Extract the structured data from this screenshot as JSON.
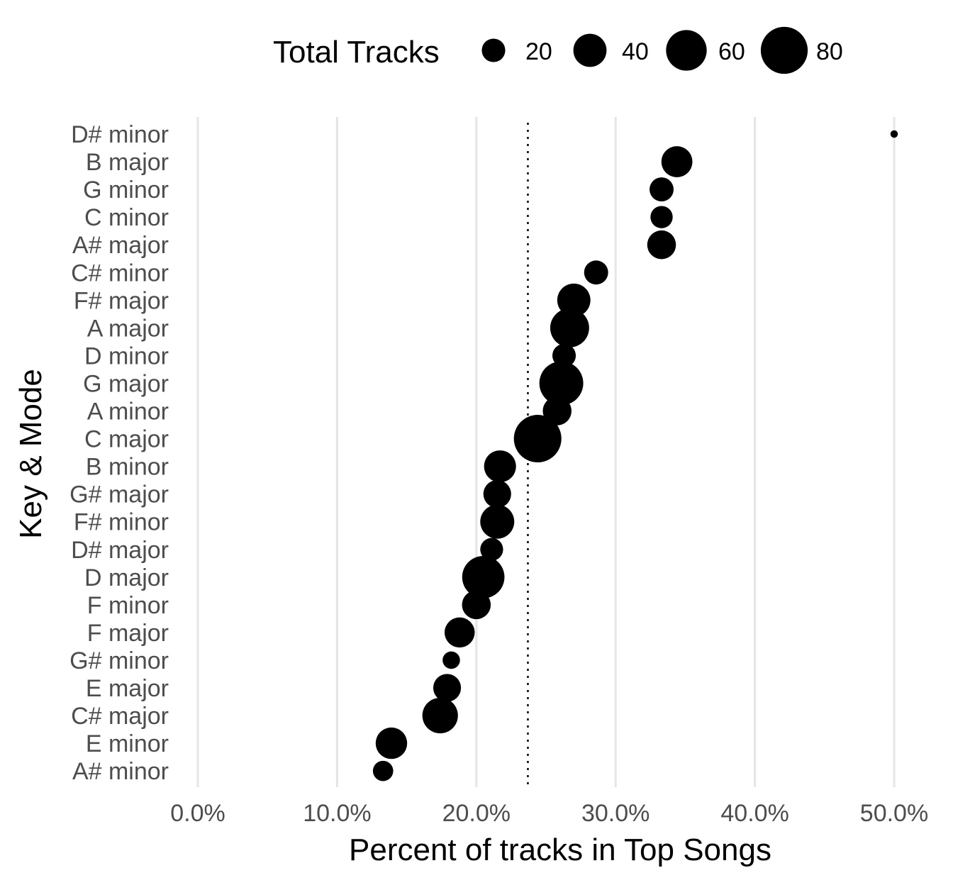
{
  "chart_data": {
    "type": "scatter",
    "xlabel": "Percent of tracks in Top Songs",
    "ylabel": "Key & Mode",
    "xlim": [
      0,
      0.5
    ],
    "x_ticks": [
      0,
      0.1,
      0.2,
      0.3,
      0.4,
      0.5
    ],
    "x_tick_labels": [
      "0.0%",
      "10.0%",
      "20.0%",
      "30.0%",
      "40.0%",
      "50.0%"
    ],
    "grid": "vertical major gridlines only",
    "reference_line": {
      "x": 0.237,
      "style": "dotted"
    },
    "legend": {
      "title": "Total Tracks",
      "position": "top",
      "sizes": [
        20,
        40,
        60,
        80
      ],
      "labels": [
        "20",
        "40",
        "60",
        "80"
      ]
    },
    "categories": [
      "D# minor",
      "B major",
      "G minor",
      "C minor",
      "A# major",
      "C# minor",
      "F# major",
      "A major",
      "D minor",
      "G major",
      "A minor",
      "C major",
      "B minor",
      "G# major",
      "F# minor",
      "D# major",
      "D major",
      "F minor",
      "F major",
      "G# minor",
      "E major",
      "C# major",
      "E minor",
      "A# minor"
    ],
    "series": [
      {
        "x": [
          0.5,
          0.344,
          0.333,
          0.333,
          0.333,
          0.286,
          0.27,
          0.267,
          0.263,
          0.261,
          0.258,
          0.244,
          0.217,
          0.215,
          0.215,
          0.211,
          0.205,
          0.2,
          0.188,
          0.182,
          0.179,
          0.174,
          0.139,
          0.133
        ],
        "size": [
          2,
          35,
          21,
          18,
          30,
          21,
          40,
          55,
          20,
          70,
          30,
          82,
          37,
          28,
          42,
          19,
          65,
          30,
          33,
          11,
          28,
          46,
          36,
          15
        ]
      }
    ],
    "colors": {
      "point": "#000000",
      "grid": "#e5e5e5",
      "tick_text": "#4d4d4d"
    }
  }
}
